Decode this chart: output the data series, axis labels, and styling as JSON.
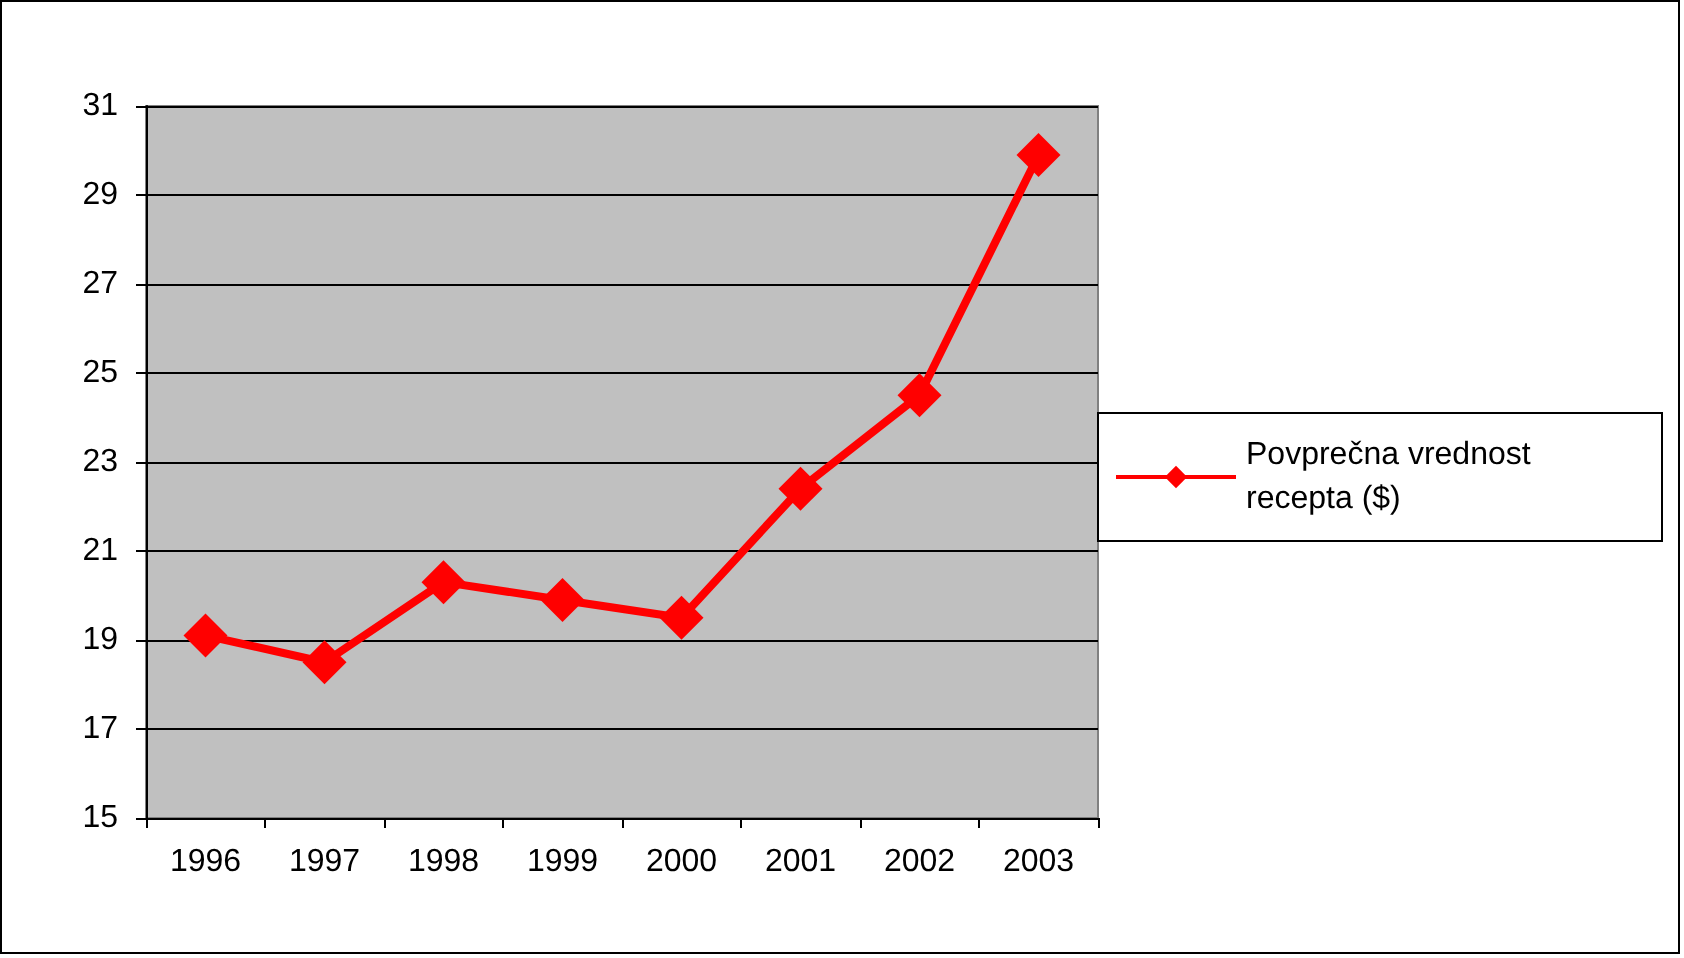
{
  "chart_data": {
    "type": "line",
    "categories": [
      "1996",
      "1997",
      "1998",
      "1999",
      "2000",
      "2001",
      "2002",
      "2003"
    ],
    "series": [
      {
        "name": "Povprečna vrednost recepta ($)",
        "color": "#ff0000",
        "values": [
          19.1,
          18.5,
          20.3,
          19.9,
          19.5,
          22.4,
          24.5,
          29.9
        ]
      }
    ],
    "ylim": [
      15,
      31
    ],
    "yticks": [
      15,
      17,
      19,
      21,
      23,
      25,
      27,
      29,
      31
    ],
    "grid": "y",
    "legend": "right",
    "marker": "diamond",
    "line_style": "solid"
  }
}
